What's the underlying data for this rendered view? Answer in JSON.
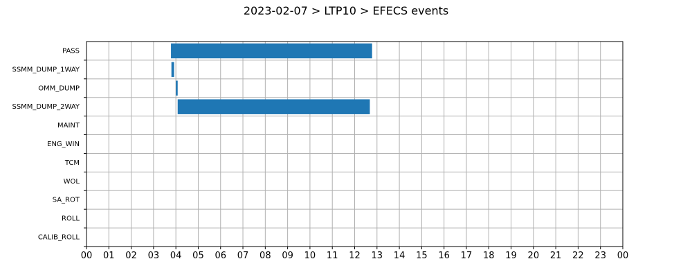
{
  "chart_data": {
    "type": "bar",
    "orientation": "horizontal",
    "title": "2023-02-07 > LTP10 > EFECS events",
    "xlabel": "",
    "ylabel": "",
    "x_unit": "hour of day",
    "xlim": [
      0,
      24
    ],
    "x_tick_labels": [
      "00",
      "01",
      "02",
      "03",
      "04",
      "05",
      "06",
      "07",
      "08",
      "09",
      "10",
      "11",
      "12",
      "13",
      "14",
      "15",
      "16",
      "17",
      "18",
      "19",
      "20",
      "21",
      "22",
      "23",
      "00"
    ],
    "categories": [
      "PASS",
      "SSMM_DUMP_1WAY",
      "OMM_DUMP",
      "SSMM_DUMP_2WAY",
      "MAINT",
      "ENG_WIN",
      "TCM",
      "WOL",
      "SA_ROT",
      "ROLL",
      "CALIB_ROLL"
    ],
    "events": [
      {
        "category": "PASS",
        "start": 3.78,
        "end": 12.78
      },
      {
        "category": "SSMM_DUMP_1WAY",
        "start": 3.8,
        "end": 3.92
      },
      {
        "category": "OMM_DUMP",
        "start": 4.0,
        "end": 4.08
      },
      {
        "category": "SSMM_DUMP_2WAY",
        "start": 4.08,
        "end": 12.68
      }
    ],
    "grid": true,
    "bar_color": "#1f77b4"
  }
}
